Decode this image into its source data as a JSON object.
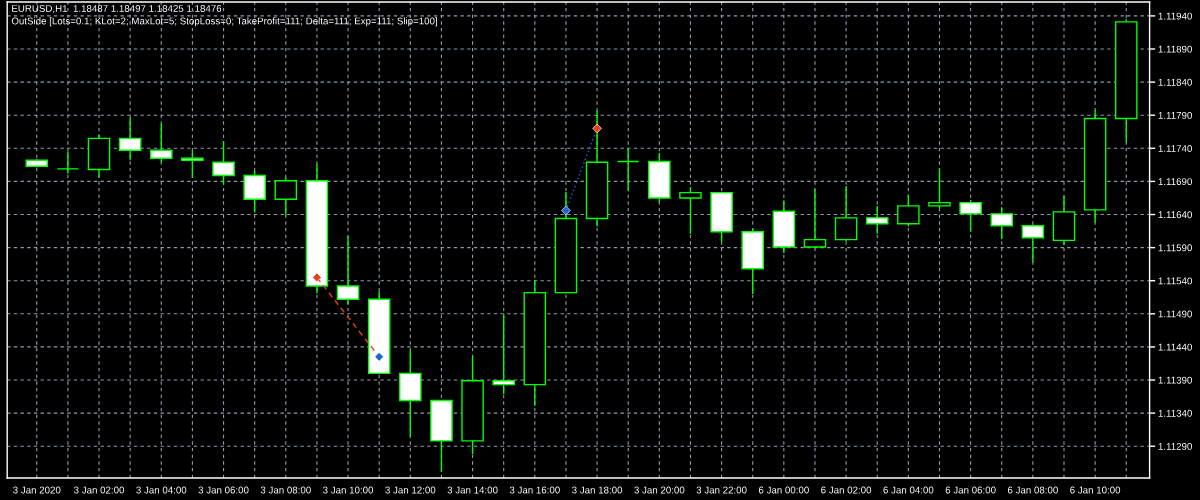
{
  "chart_data": {
    "type": "candlestick",
    "title": "EURUSD,H1  1.18487 1.18497 1.18425 1.18476",
    "subtitle": "OutSide [Lots=0.1; KLot=2; MaxLot=5; StopLoss=0; TakeProfit=111; Delta=111; Exp=111; Slip=100]",
    "categories": [
      "3 Jan 2020",
      null,
      "3 Jan 02:00",
      null,
      "3 Jan 04:00",
      null,
      "3 Jan 06:00",
      null,
      "3 Jan 08:00",
      null,
      "3 Jan 10:00",
      null,
      "3 Jan 12:00",
      null,
      "3 Jan 14:00",
      null,
      "3 Jan 16:00",
      null,
      "3 Jan 18:00",
      null,
      "3 Jan 20:00",
      null,
      "3 Jan 22:00",
      null,
      "6 Jan 00:00",
      null,
      "6 Jan 02:00",
      null,
      "6 Jan 04:00",
      null,
      "6 Jan 06:00",
      null,
      "6 Jan 08:00",
      null,
      "6 Jan 10:00",
      null
    ],
    "ohlc": [
      [
        1.11722,
        1.11724,
        1.11711,
        1.11713
      ],
      [
        1.11709,
        1.11735,
        1.11702,
        1.11709
      ],
      [
        1.11708,
        1.11761,
        1.11696,
        1.11755
      ],
      [
        1.11755,
        1.11786,
        1.11722,
        1.11737
      ],
      [
        1.11737,
        1.11777,
        1.11719,
        1.11725
      ],
      [
        1.11725,
        1.11737,
        1.11695,
        1.11722
      ],
      [
        1.11719,
        1.11751,
        1.11685,
        1.11699
      ],
      [
        1.11699,
        1.11706,
        1.11643,
        1.11663
      ],
      [
        1.11663,
        1.11696,
        1.11639,
        1.11691
      ],
      [
        1.11691,
        1.11716,
        1.11521,
        1.11532
      ],
      [
        1.11532,
        1.11607,
        1.11504,
        1.11512
      ],
      [
        1.11512,
        1.11524,
        1.11399,
        1.114
      ],
      [
        1.114,
        1.11435,
        1.11305,
        1.11359
      ],
      [
        1.11359,
        1.1136,
        1.11251,
        1.11298
      ],
      [
        1.11298,
        1.11426,
        1.11278,
        1.11389
      ],
      [
        1.11389,
        1.11489,
        1.11369,
        1.11383
      ],
      [
        1.11383,
        1.11541,
        1.11351,
        1.11522
      ],
      [
        1.11522,
        1.11674,
        1.11521,
        1.11634
      ],
      [
        1.11634,
        1.11797,
        1.11622,
        1.11719
      ],
      [
        1.1172,
        1.1174,
        1.11676,
        1.1172
      ],
      [
        1.1172,
        1.11733,
        1.11658,
        1.11665
      ],
      [
        1.11665,
        1.11681,
        1.11611,
        1.11673
      ],
      [
        1.11673,
        1.11674,
        1.11599,
        1.11614
      ],
      [
        1.11614,
        1.11619,
        1.1152,
        1.11558
      ],
      [
        1.11645,
        1.11661,
        1.11582,
        1.11591
      ],
      [
        1.11591,
        1.11678,
        1.1159,
        1.11602
      ],
      [
        1.11602,
        1.11683,
        1.116,
        1.11635
      ],
      [
        1.11635,
        1.11653,
        1.11611,
        1.11626
      ],
      [
        1.11626,
        1.1167,
        1.11622,
        1.11653
      ],
      [
        1.11653,
        1.11709,
        1.11649,
        1.11658
      ],
      [
        1.11658,
        1.11662,
        1.11614,
        1.11641
      ],
      [
        1.11641,
        1.11651,
        1.11603,
        1.11623
      ],
      [
        1.11623,
        1.11625,
        1.11568,
        1.11605
      ],
      [
        1.11601,
        1.11668,
        1.11594,
        1.11644
      ],
      [
        1.11647,
        1.11798,
        1.11628,
        1.11785
      ],
      [
        1.11785,
        1.11935,
        1.11749,
        1.11931
      ]
    ],
    "color": "#00ff00",
    "colors": [
      "#ffffff",
      "#00ff00",
      "#000000",
      "#ffffff",
      "#ffffff",
      "#ffffff",
      "#ffffff",
      "#ffffff",
      "#000000",
      "#ffffff",
      "#ffffff",
      "#ffffff",
      "#ffffff",
      "#ffffff",
      "#000000",
      "#ffffff",
      "#000000",
      "#000000",
      "#000000",
      "#00ff00",
      "#ffffff",
      "#000000",
      "#ffffff",
      "#ffffff",
      "#ffffff",
      "#000000",
      "#000000",
      "#ffffff",
      "#000000",
      "#000000",
      "#ffffff",
      "#ffffff",
      "#ffffff",
      "#000000",
      "#000000",
      "#000000"
    ],
    "series": [
      {
        "type": "line",
        "color": "#e8401c",
        "line_style": "dashed",
        "values": [
          null,
          null,
          null,
          null,
          null,
          null,
          null,
          null,
          null,
          1.11545,
          1.11485,
          1.11425,
          null,
          null,
          null,
          null,
          null,
          null,
          null,
          null,
          null,
          null,
          null,
          null,
          null,
          null,
          null,
          null,
          null,
          null,
          null,
          null,
          null,
          null,
          null,
          null
        ]
      },
      {
        "type": "line",
        "color": "#1e64d2",
        "line_style": "dotted",
        "values": [
          null,
          null,
          null,
          null,
          null,
          null,
          null,
          null,
          null,
          null,
          null,
          null,
          null,
          null,
          null,
          null,
          null,
          1.11646,
          1.1177,
          null,
          null,
          null,
          null,
          null,
          null,
          null,
          null,
          null,
          null,
          null,
          null,
          null,
          null,
          null,
          null,
          null
        ]
      },
      {
        "type": "scatter",
        "color": "#e8401c",
        "marker": "diamond",
        "values": [
          null,
          null,
          null,
          null,
          null,
          null,
          null,
          null,
          null,
          1.11545,
          null,
          null,
          null,
          null,
          null,
          null,
          null,
          null,
          1.1177,
          null,
          null,
          null,
          null,
          null,
          null,
          null,
          null,
          null,
          null,
          null,
          null,
          null,
          null,
          null,
          null,
          null
        ]
      },
      {
        "type": "scatter",
        "color": "#1e64d2",
        "marker": "diamond",
        "values": [
          null,
          null,
          null,
          null,
          null,
          null,
          null,
          null,
          null,
          null,
          null,
          1.11425,
          null,
          null,
          null,
          null,
          null,
          1.11646,
          null,
          null,
          null,
          null,
          null,
          null,
          null,
          null,
          null,
          null,
          null,
          null,
          null,
          null,
          null,
          null,
          null,
          null
        ]
      }
    ],
    "ylim": [
      1.11242,
      1.11961
    ],
    "yticks": [
      {
        "value": 1.1129,
        "label": "1.11290"
      },
      {
        "value": 1.1134,
        "label": "1.11340"
      },
      {
        "value": 1.1139,
        "label": "1.11390"
      },
      {
        "value": 1.1144,
        "label": "1.11440"
      },
      {
        "value": 1.1149,
        "label": "1.11490"
      },
      {
        "value": 1.1154,
        "label": "1.11540"
      },
      {
        "value": 1.1159,
        "label": "1.11590"
      },
      {
        "value": 1.1164,
        "label": "1.11640"
      },
      {
        "value": 1.1169,
        "label": "1.11690"
      },
      {
        "value": 1.1174,
        "label": "1.11740"
      },
      {
        "value": 1.1179,
        "label": "1.11790"
      },
      {
        "value": 1.1184,
        "label": "1.11840"
      },
      {
        "value": 1.1189,
        "label": "1.11890"
      },
      {
        "value": 1.1194,
        "label": "1.11940"
      }
    ],
    "grid": true
  }
}
